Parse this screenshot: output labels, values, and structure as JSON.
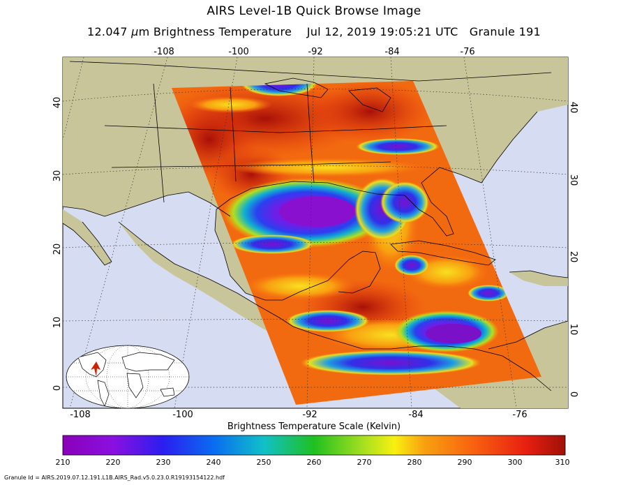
{
  "header": {
    "title": "AIRS Level-1B Quick Browse Image",
    "subtitle_mu": "μ",
    "subtitle_prefix": "12.047 ",
    "subtitle_rest": "m Brightness Temperature    Jul 12, 2019 19:05:21 UTC   Granule 191"
  },
  "map": {
    "top_lon_ticks": [
      "-108",
      "-100",
      "-92",
      "-84",
      "-76"
    ],
    "bottom_lon_ticks": [
      "-108",
      "-100",
      "-92",
      "-84",
      "-76"
    ],
    "left_lat_ticks": [
      "40",
      "30",
      "20",
      "10",
      "0"
    ],
    "right_lat_ticks": [
      "40",
      "30",
      "20",
      "10",
      "0"
    ],
    "colors": {
      "land": "#c9c59a",
      "ocean": "#d6dcf2",
      "coast": "#000000",
      "grid": "#333333"
    }
  },
  "inset": {
    "marker_color": "#cc2200"
  },
  "colorbar": {
    "title": "Brightness Temperature Scale (Kelvin)",
    "labels": [
      "210",
      "220",
      "230",
      "240",
      "250",
      "260",
      "270",
      "280",
      "290",
      "300",
      "310"
    ],
    "min": 210,
    "max": 310
  },
  "footer": {
    "granule_id": "Granule Id = AIRS.2019.07.12.191.L1B.AIRS_Rad.v5.0.23.0.R19193154122.hdf"
  }
}
